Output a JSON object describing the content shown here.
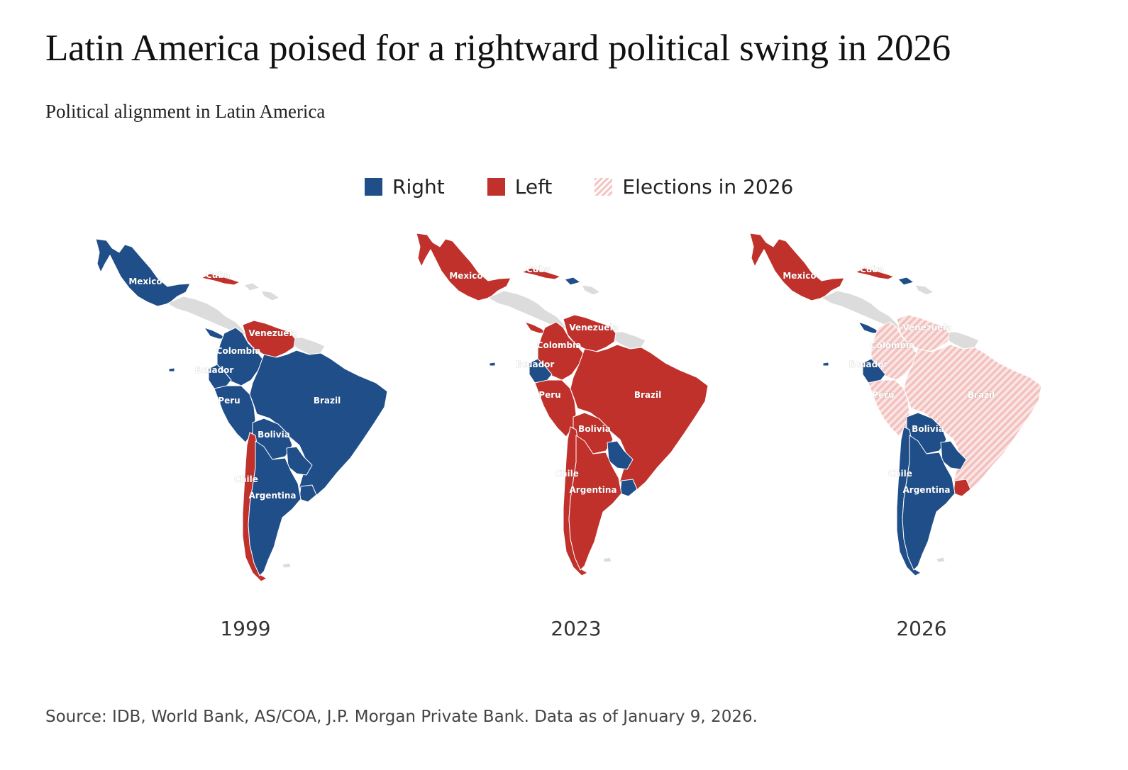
{
  "title": "Latin America poised for a rightward political swing in 2026",
  "subtitle": "Political alignment in Latin America",
  "legend": [
    {
      "key": "right",
      "label": "Right",
      "color": "#1f4e89"
    },
    {
      "key": "left",
      "label": "Left",
      "color": "#c0312b"
    },
    {
      "key": "elections",
      "label": "Elections in 2026",
      "color": "#f2c6c3"
    }
  ],
  "colors": {
    "right": "#1f4e89",
    "left": "#c0312b",
    "elections": "#f2c6c3",
    "no_data": "#dcdcdc",
    "border": "#ffffff"
  },
  "maps": [
    {
      "year": "1999",
      "regions": {
        "mexico": "right",
        "cuba": "left",
        "dominican_republic": "no_data",
        "central_america": "no_data",
        "panama": "right",
        "venezuela": "left",
        "colombia": "right",
        "ecuador": "right",
        "guianas": "no_data",
        "brazil": "right",
        "peru": "right",
        "bolivia": "right",
        "paraguay": "right",
        "chile": "left",
        "argentina": "right",
        "uruguay": "right"
      },
      "labels": [
        "Mexico",
        "Cuba",
        "Venezuela",
        "Colombia",
        "Ecuador",
        "Peru",
        "Brazil",
        "Bolivia",
        "Chile",
        "Argentina"
      ]
    },
    {
      "year": "2023",
      "regions": {
        "mexico": "left",
        "cuba": "left",
        "dominican_republic": "right",
        "central_america": "no_data",
        "panama": "left",
        "venezuela": "left",
        "colombia": "left",
        "ecuador": "right",
        "guianas": "no_data",
        "brazil": "left",
        "peru": "left",
        "bolivia": "left",
        "paraguay": "right",
        "chile": "left",
        "argentina": "left",
        "uruguay": "right"
      },
      "labels": [
        "Mexico",
        "Cuba",
        "Venezuela",
        "Colombia",
        "Ecuador",
        "Peru",
        "Brazil",
        "Bolivia",
        "Chile",
        "Argentina"
      ]
    },
    {
      "year": "2026",
      "regions": {
        "mexico": "left",
        "cuba": "left",
        "dominican_republic": "right",
        "central_america": "no_data",
        "panama": "right",
        "venezuela": "elections",
        "colombia": "elections",
        "ecuador": "right",
        "guianas": "no_data",
        "brazil": "elections",
        "peru": "elections",
        "bolivia": "right",
        "paraguay": "right",
        "chile": "right",
        "argentina": "right",
        "uruguay": "left"
      },
      "labels": [
        "Mexico",
        "Cuba",
        "Venezuela",
        "Colombia",
        "Ecuador",
        "Peru",
        "Brazil",
        "Bolivia",
        "Chile",
        "Argentina"
      ]
    }
  ],
  "source": "Source: IDB, World Bank, AS/COA, J.P. Morgan Private Bank. Data as of January 9, 2026."
}
